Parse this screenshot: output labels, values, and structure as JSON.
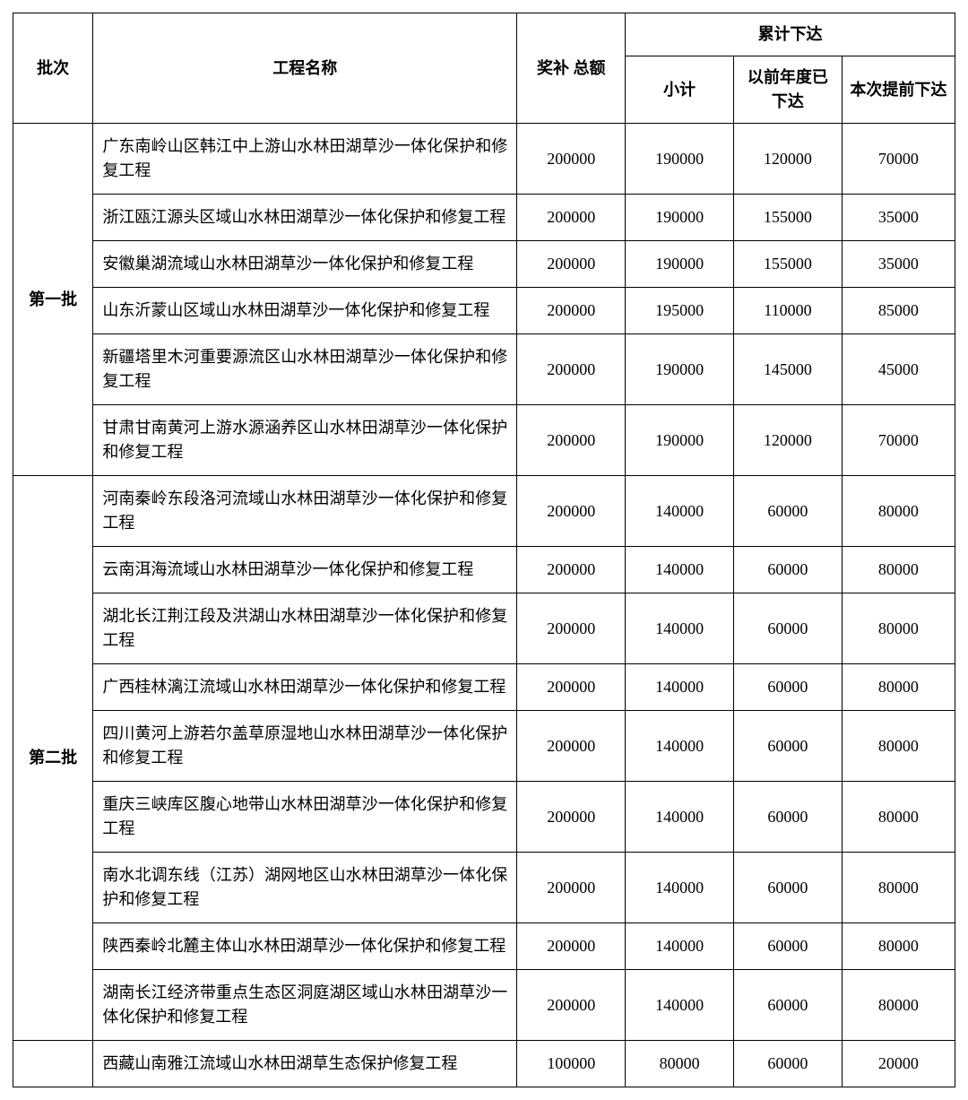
{
  "table": {
    "headers": {
      "batch": "批次",
      "name": "工程名称",
      "total": "奖补\n总额",
      "cumulative": "累计下达",
      "subtotal": "小计",
      "prev": "以前年度已下达",
      "this": "本次提前下达"
    },
    "groups": [
      {
        "batch_label": "第一批",
        "rows": [
          {
            "name": "广东南岭山区韩江中上游山水林田湖草沙一体化保护和修复工程",
            "total": 200000,
            "subtotal": 190000,
            "prev": 120000,
            "this": 70000
          },
          {
            "name": "浙江瓯江源头区域山水林田湖草沙一体化保护和修复工程",
            "total": 200000,
            "subtotal": 190000,
            "prev": 155000,
            "this": 35000
          },
          {
            "name": "安徽巢湖流域山水林田湖草沙一体化保护和修复工程",
            "total": 200000,
            "subtotal": 190000,
            "prev": 155000,
            "this": 35000
          },
          {
            "name": "山东沂蒙山区域山水林田湖草沙一体化保护和修复工程",
            "total": 200000,
            "subtotal": 195000,
            "prev": 110000,
            "this": 85000
          },
          {
            "name": "新疆塔里木河重要源流区山水林田湖草沙一体化保护和修复工程",
            "total": 200000,
            "subtotal": 190000,
            "prev": 145000,
            "this": 45000
          },
          {
            "name": "甘肃甘南黄河上游水源涵养区山水林田湖草沙一体化保护和修复工程",
            "total": 200000,
            "subtotal": 190000,
            "prev": 120000,
            "this": 70000
          }
        ]
      },
      {
        "batch_label": "第二批",
        "rows": [
          {
            "name": "河南秦岭东段洛河流域山水林田湖草沙一体化保护和修复工程",
            "total": 200000,
            "subtotal": 140000,
            "prev": 60000,
            "this": 80000
          },
          {
            "name": "云南洱海流域山水林田湖草沙一体化保护和修复工程",
            "total": 200000,
            "subtotal": 140000,
            "prev": 60000,
            "this": 80000
          },
          {
            "name": "湖北长江荆江段及洪湖山水林田湖草沙一体化保护和修复工程",
            "total": 200000,
            "subtotal": 140000,
            "prev": 60000,
            "this": 80000
          },
          {
            "name": "广西桂林漓江流域山水林田湖草沙一体化保护和修复工程",
            "total": 200000,
            "subtotal": 140000,
            "prev": 60000,
            "this": 80000
          },
          {
            "name": "四川黄河上游若尔盖草原湿地山水林田湖草沙一体化保护和修复工程",
            "total": 200000,
            "subtotal": 140000,
            "prev": 60000,
            "this": 80000
          },
          {
            "name": "重庆三峡库区腹心地带山水林田湖草沙一体化保护和修复工程",
            "total": 200000,
            "subtotal": 140000,
            "prev": 60000,
            "this": 80000
          },
          {
            "name": "南水北调东线（江苏）湖网地区山水林田湖草沙一体化保护和修复工程",
            "total": 200000,
            "subtotal": 140000,
            "prev": 60000,
            "this": 80000
          },
          {
            "name": "陕西秦岭北麓主体山水林田湖草沙一体化保护和修复工程",
            "total": 200000,
            "subtotal": 140000,
            "prev": 60000,
            "this": 80000
          },
          {
            "name": "湖南长江经济带重点生态区洞庭湖区域山水林田湖草沙一体化保护和修复工程",
            "total": 200000,
            "subtotal": 140000,
            "prev": 60000,
            "this": 80000
          }
        ]
      },
      {
        "batch_label": "",
        "rows": [
          {
            "name": "西藏山南雅江流域山水林田湖草生态保护修复工程",
            "total": 100000,
            "subtotal": 80000,
            "prev": 60000,
            "this": 20000
          }
        ]
      }
    ]
  },
  "style": {
    "font_family": "SimSun",
    "header_fontsize_pt": 14,
    "body_fontsize_pt": 14,
    "border_color": "#000000",
    "background_color": "#ffffff",
    "text_color": "#000000",
    "column_widths_pct": [
      8.5,
      45,
      11.5,
      11.5,
      11.5,
      12
    ]
  }
}
